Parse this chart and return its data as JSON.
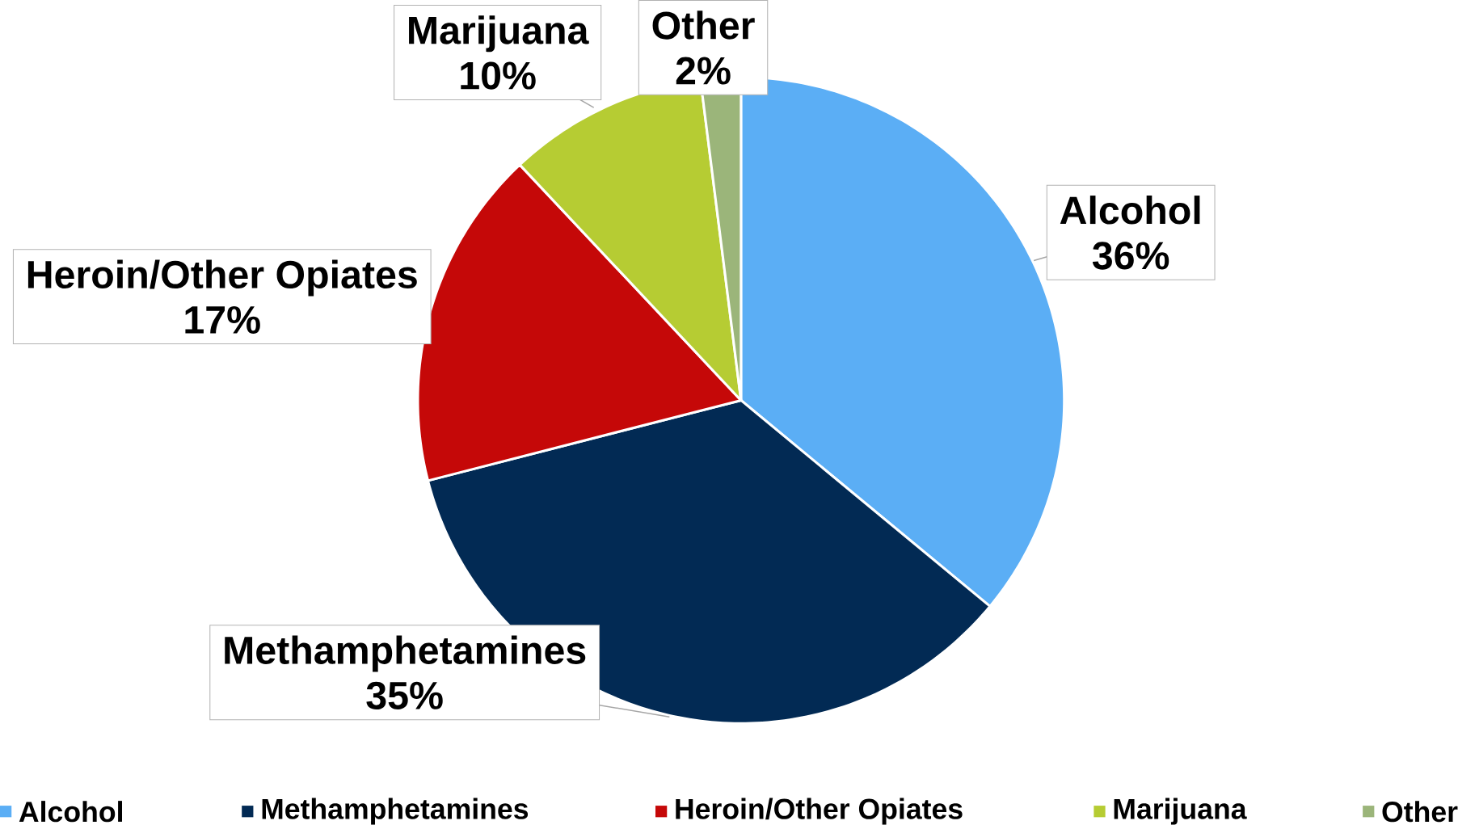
{
  "chart_data": {
    "type": "pie",
    "categories": [
      "Alcohol",
      "Methamphetamines",
      "Heroin/Other Opiates",
      "Marijuana",
      "Other"
    ],
    "values": [
      36,
      35,
      17,
      10,
      2
    ],
    "value_labels": [
      "36%",
      "35%",
      "17%",
      "10%",
      "2%"
    ],
    "colors": [
      "#5baef5",
      "#022a54",
      "#c50808",
      "#b6cc33",
      "#9bb57a"
    ],
    "legend": "bottom"
  }
}
